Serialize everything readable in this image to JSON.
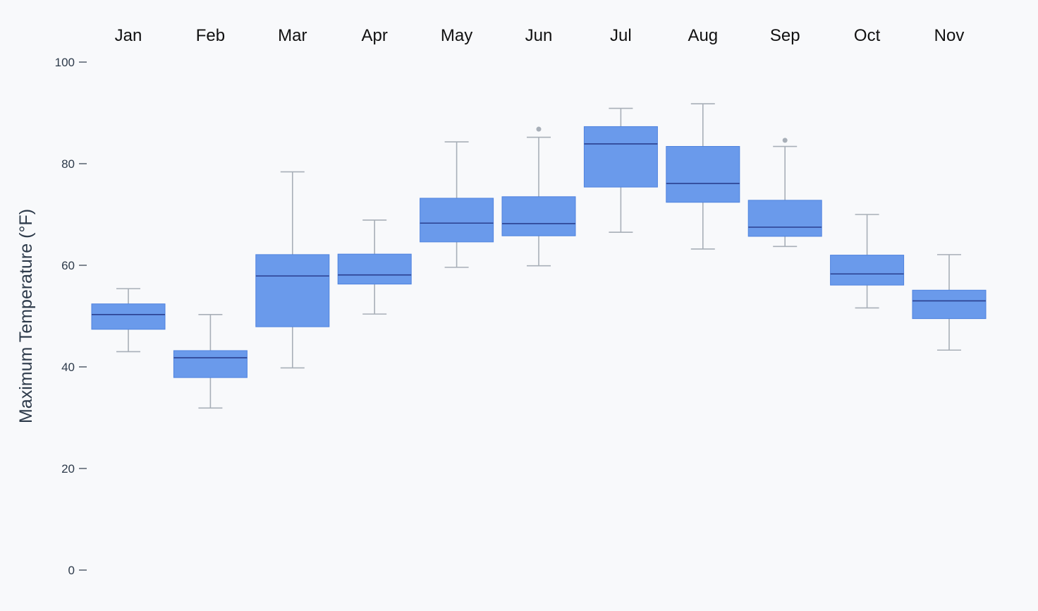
{
  "chart_data": {
    "type": "box",
    "title": "",
    "xlabel": "",
    "ylabel": "Maximum Temperature (°F)",
    "ylim": [
      0,
      100
    ],
    "yticks": [
      0,
      20,
      40,
      60,
      80,
      100
    ],
    "y_tick_labels": [
      "0",
      "20",
      "40",
      "60",
      "80",
      "100"
    ],
    "x_axis_position": "top",
    "categories": [
      "Jan",
      "Feb",
      "Mar",
      "Apr",
      "May",
      "Jun",
      "Jul",
      "Aug",
      "Sep",
      "Oct",
      "Nov"
    ],
    "boxes": [
      {
        "category": "Jan",
        "whisker_low": 43.0,
        "q1": 47.4,
        "median": 50.3,
        "q3": 52.4,
        "whisker_high": 55.4,
        "outliers": []
      },
      {
        "category": "Feb",
        "whisker_low": 31.9,
        "q1": 37.9,
        "median": 41.8,
        "q3": 43.2,
        "whisker_high": 50.3,
        "outliers": []
      },
      {
        "category": "Mar",
        "whisker_low": 39.8,
        "q1": 47.9,
        "median": 57.9,
        "q3": 62.1,
        "whisker_high": 78.4,
        "outliers": []
      },
      {
        "category": "Apr",
        "whisker_low": 50.4,
        "q1": 56.3,
        "median": 58.1,
        "q3": 62.2,
        "whisker_high": 68.9,
        "outliers": []
      },
      {
        "category": "May",
        "whisker_low": 59.6,
        "q1": 64.6,
        "median": 68.3,
        "q3": 73.2,
        "whisker_high": 84.3,
        "outliers": []
      },
      {
        "category": "Jun",
        "whisker_low": 59.9,
        "q1": 65.8,
        "median": 68.2,
        "q3": 73.5,
        "whisker_high": 85.2,
        "outliers": [
          86.8
        ]
      },
      {
        "category": "Jul",
        "whisker_low": 66.5,
        "q1": 75.4,
        "median": 83.9,
        "q3": 87.3,
        "whisker_high": 90.9,
        "outliers": []
      },
      {
        "category": "Aug",
        "whisker_low": 63.2,
        "q1": 72.4,
        "median": 76.1,
        "q3": 83.4,
        "whisker_high": 91.8,
        "outliers": []
      },
      {
        "category": "Sep",
        "whisker_low": 63.7,
        "q1": 65.7,
        "median": 67.5,
        "q3": 72.8,
        "whisker_high": 83.4,
        "outliers": [
          84.6
        ]
      },
      {
        "category": "Oct",
        "whisker_low": 51.6,
        "q1": 56.1,
        "median": 58.3,
        "q3": 62.0,
        "whisker_high": 70.0,
        "outliers": []
      },
      {
        "category": "Nov",
        "whisker_low": 43.3,
        "q1": 49.5,
        "median": 53.0,
        "q3": 55.1,
        "whisker_high": 62.1,
        "outliers": []
      }
    ],
    "grid": false,
    "legend": "none",
    "colors": {
      "box_fill": "#6a9aeb",
      "box_stroke": "#4f83df",
      "median_line": "#2a3f8f",
      "whisker": "#a8afb8",
      "outlier": "#a8afb8",
      "background": "#f8f9fb",
      "axis_text": "#2d3a4a",
      "month_text": "#111111"
    }
  }
}
